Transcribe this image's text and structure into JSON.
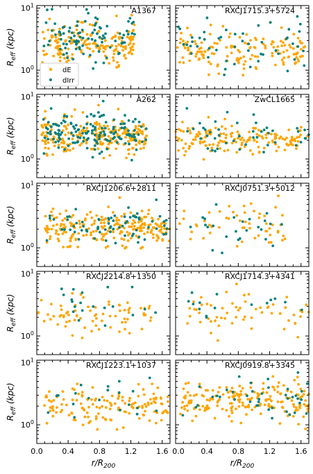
{
  "figure": {
    "y_axis_label": "R_eff (kpc)",
    "x_axis_label": "r/R_200"
  },
  "chart_data": {
    "type": "scatter",
    "xlabel": "r/R200",
    "ylabel": "Reff (kpc)",
    "xlim": [
      0.0,
      1.7
    ],
    "ylim": [
      0.5,
      11
    ],
    "yscale": "log",
    "xticks": [
      "0.0",
      "0.4",
      "0.8",
      "1.2",
      "1.6"
    ],
    "yticks": [
      "10^0",
      "10^1"
    ],
    "legend": {
      "placement": "lower-left",
      "panel": "A1367",
      "entries": [
        {
          "name": "dE",
          "color": "#ffa500"
        },
        {
          "name": "dIrr",
          "color": "#008080"
        }
      ]
    },
    "colors": {
      "dE": "#ffa500",
      "dIrr": "#008080"
    },
    "panels": [
      {
        "name": "A1367",
        "n_dE": 175,
        "n_dIrr": 95,
        "xrange": [
          0.06,
          1.25
        ]
      },
      {
        "name": "RXCJ1715.3+5724",
        "n_dE": 150,
        "n_dIrr": 50,
        "xrange": [
          0.02,
          1.65
        ]
      },
      {
        "name": "A262",
        "n_dE": 230,
        "n_dIrr": 150,
        "xrange": [
          0.06,
          1.4
        ]
      },
      {
        "name": "ZwCL1665",
        "n_dE": 160,
        "n_dIrr": 45,
        "xrange": [
          0.0,
          1.7
        ]
      },
      {
        "name": "RXCJ1206.6+2811",
        "n_dE": 230,
        "n_dIrr": 70,
        "xrange": [
          0.08,
          1.7
        ]
      },
      {
        "name": "RXCJ0751.3+5012",
        "n_dE": 55,
        "n_dIrr": 25,
        "xrange": [
          0.05,
          1.45
        ]
      },
      {
        "name": "RXCJ2214.8+1350",
        "n_dE": 75,
        "n_dIrr": 20,
        "xrange": [
          0.0,
          1.55
        ]
      },
      {
        "name": "RXCJ1714.3+4341",
        "n_dE": 60,
        "n_dIrr": 15,
        "xrange": [
          0.08,
          1.7
        ]
      },
      {
        "name": "RXCJ1223.1+1037",
        "n_dE": 140,
        "n_dIrr": 20,
        "xrange": [
          0.08,
          1.7
        ]
      },
      {
        "name": "RXCJ0919.8+3345",
        "n_dE": 190,
        "n_dIrr": 40,
        "xrange": [
          0.05,
          1.7
        ]
      }
    ]
  }
}
